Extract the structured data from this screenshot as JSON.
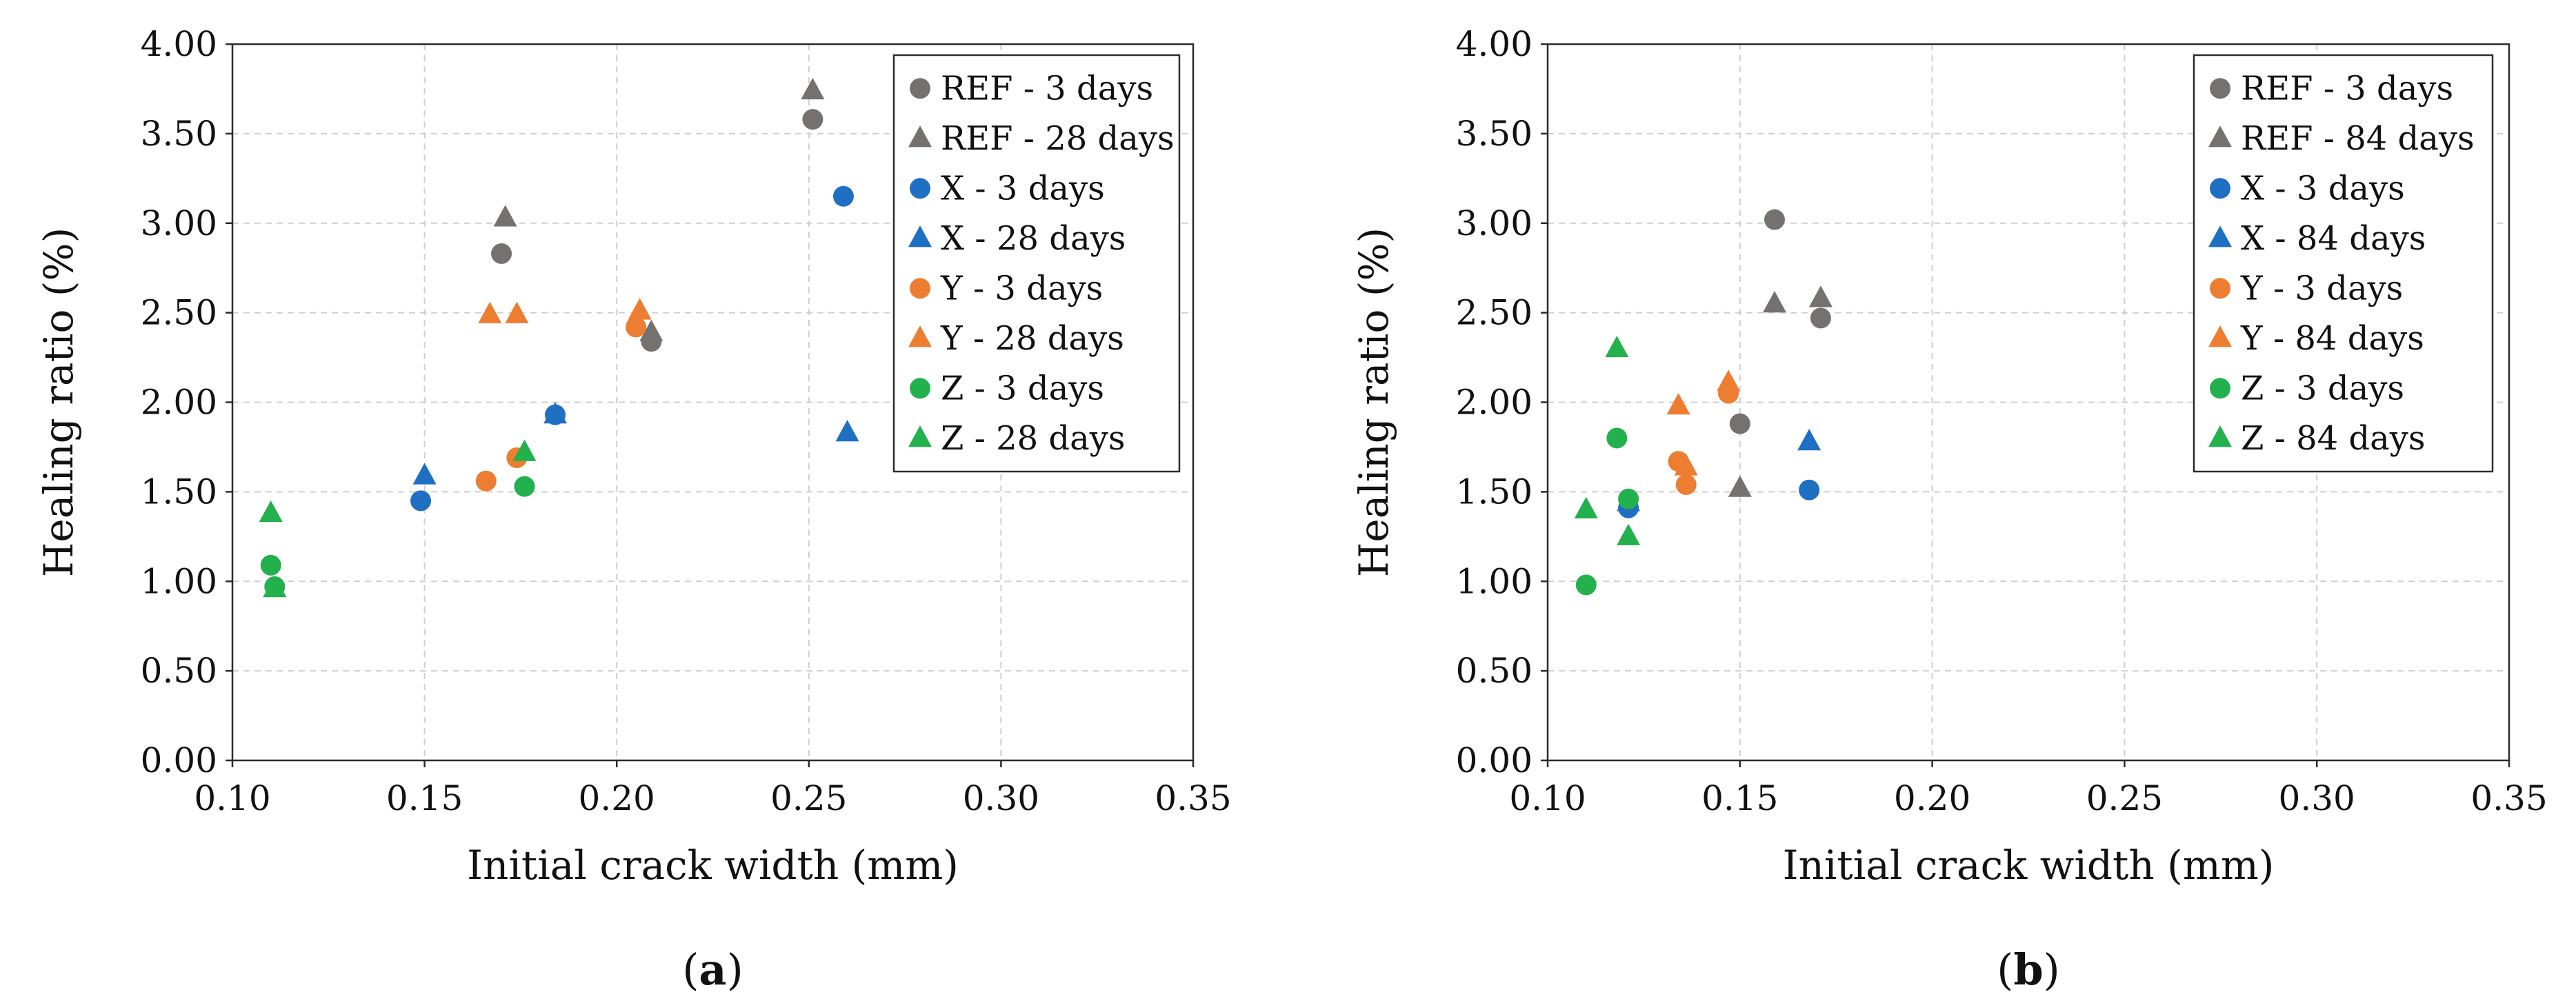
{
  "chart_data": [
    {
      "type": "scatter",
      "panel_label": "a",
      "xlabel": "Initial crack width (mm)",
      "ylabel": "Healing ratio (%)",
      "xlim": [
        0.1,
        0.35
      ],
      "ylim": [
        0.0,
        4.0
      ],
      "xticks": [
        "0.10",
        "0.15",
        "0.20",
        "0.25",
        "0.30",
        "0.35"
      ],
      "yticks": [
        "0.00",
        "0.50",
        "1.00",
        "1.50",
        "2.00",
        "2.50",
        "3.00",
        "3.50",
        "4.00"
      ],
      "grid": true,
      "legend_position": "top-right",
      "series": [
        {
          "name": "REF - 3 days",
          "marker": "circle",
          "color": "#767171",
          "x": [
            0.17,
            0.209,
            0.251
          ],
          "y": [
            2.83,
            2.34,
            3.58
          ]
        },
        {
          "name": "REF - 28 days",
          "marker": "triangle",
          "color": "#767171",
          "x": [
            0.171,
            0.209,
            0.251
          ],
          "y": [
            3.03,
            2.39,
            3.74
          ]
        },
        {
          "name": "X - 3 days",
          "marker": "circle",
          "color": "#1f6fc3",
          "x": [
            0.149,
            0.184,
            0.259
          ],
          "y": [
            1.45,
            1.93,
            3.15
          ]
        },
        {
          "name": "X - 28 days",
          "marker": "triangle",
          "color": "#1f6fc3",
          "x": [
            0.15,
            0.184,
            0.26
          ],
          "y": [
            1.59,
            1.93,
            1.83
          ]
        },
        {
          "name": "Y - 3 days",
          "marker": "circle",
          "color": "#ed7d31",
          "x": [
            0.166,
            0.174,
            0.205
          ],
          "y": [
            1.56,
            1.69,
            2.42
          ]
        },
        {
          "name": "Y - 28 days",
          "marker": "triangle",
          "color": "#ed7d31",
          "x": [
            0.167,
            0.174,
            0.206
          ],
          "y": [
            2.49,
            2.49,
            2.51
          ]
        },
        {
          "name": "Z - 3 days",
          "marker": "circle",
          "color": "#22b14c",
          "x": [
            0.11,
            0.111,
            0.176
          ],
          "y": [
            1.09,
            0.97,
            1.53
          ]
        },
        {
          "name": "Z - 28 days",
          "marker": "triangle",
          "color": "#22b14c",
          "x": [
            0.11,
            0.111,
            0.176
          ],
          "y": [
            1.38,
            0.96,
            1.72
          ]
        }
      ]
    },
    {
      "type": "scatter",
      "panel_label": "b",
      "xlabel": "Initial crack width (mm)",
      "ylabel": "Healing ratio (%)",
      "xlim": [
        0.1,
        0.35
      ],
      "ylim": [
        0.0,
        4.0
      ],
      "xticks": [
        "0.10",
        "0.15",
        "0.20",
        "0.25",
        "0.30",
        "0.35"
      ],
      "yticks": [
        "0.00",
        "0.50",
        "1.00",
        "1.50",
        "2.00",
        "2.50",
        "3.00",
        "3.50",
        "4.00"
      ],
      "grid": true,
      "legend_position": "top-right",
      "series": [
        {
          "name": "REF - 3 days",
          "marker": "circle",
          "color": "#767171",
          "x": [
            0.15,
            0.159,
            0.171
          ],
          "y": [
            1.88,
            3.02,
            2.47
          ]
        },
        {
          "name": "REF - 84 days",
          "marker": "triangle",
          "color": "#767171",
          "x": [
            0.15,
            0.159,
            0.171
          ],
          "y": [
            1.52,
            2.55,
            2.58
          ]
        },
        {
          "name": "X - 3 days",
          "marker": "circle",
          "color": "#1f6fc3",
          "x": [
            0.121,
            0.168
          ],
          "y": [
            1.41,
            1.51
          ]
        },
        {
          "name": "X - 84 days",
          "marker": "triangle",
          "color": "#1f6fc3",
          "x": [
            0.121,
            0.168
          ],
          "y": [
            1.44,
            1.78
          ]
        },
        {
          "name": "Y - 3 days",
          "marker": "circle",
          "color": "#ed7d31",
          "x": [
            0.134,
            0.136,
            0.147
          ],
          "y": [
            1.67,
            1.54,
            2.05
          ]
        },
        {
          "name": "Y - 84 days",
          "marker": "triangle",
          "color": "#ed7d31",
          "x": [
            0.134,
            0.136,
            0.147
          ],
          "y": [
            1.98,
            1.64,
            2.11
          ]
        },
        {
          "name": "Z - 3 days",
          "marker": "circle",
          "color": "#22b14c",
          "x": [
            0.11,
            0.118,
            0.121
          ],
          "y": [
            0.98,
            1.8,
            1.46
          ]
        },
        {
          "name": "Z - 84 days",
          "marker": "triangle",
          "color": "#22b14c",
          "x": [
            0.11,
            0.118,
            0.121
          ],
          "y": [
            1.4,
            2.3,
            1.25
          ]
        }
      ]
    }
  ]
}
